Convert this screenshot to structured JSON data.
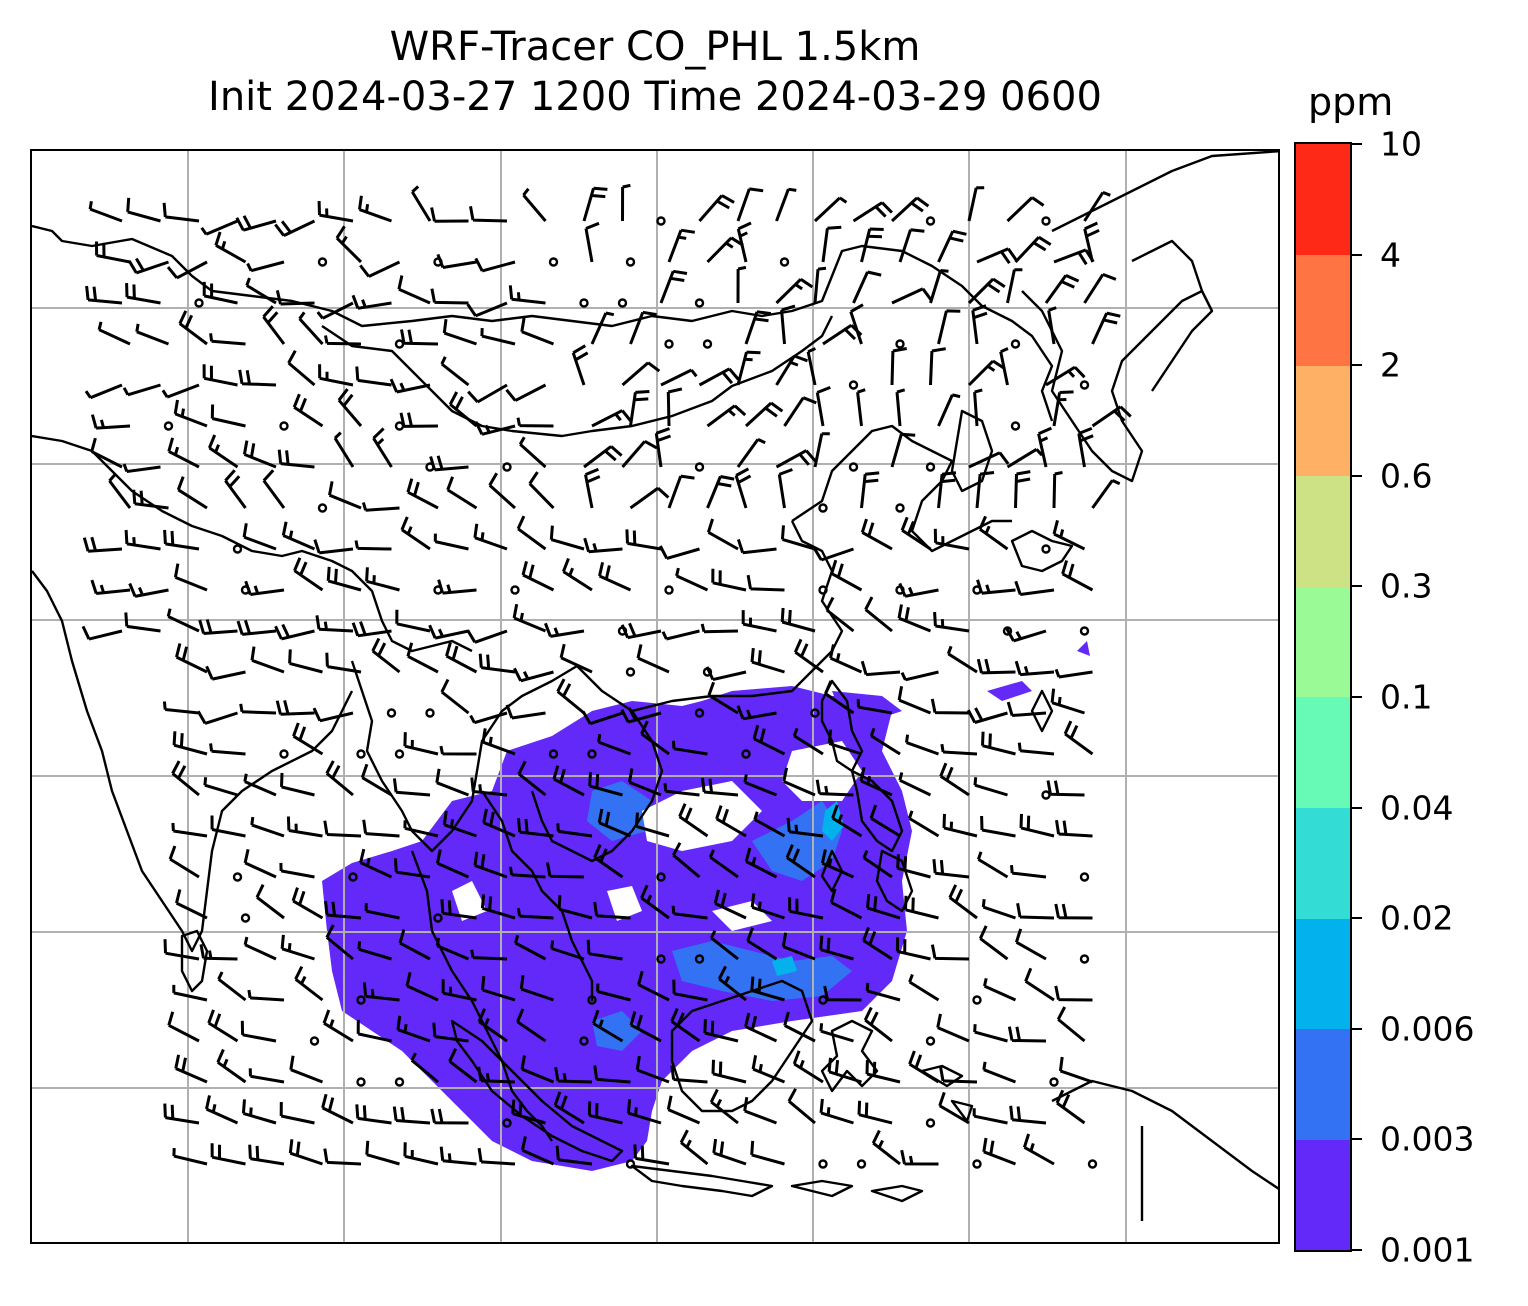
{
  "title": {
    "line1": "WRF-Tracer CO_PHL 1.5km",
    "line2": "Init 2024-03-27 1200 Time 2024-03-29 0600"
  },
  "colorbar": {
    "unit": "ppm",
    "levels": [
      "0.001",
      "0.003",
      "0.006",
      "0.02",
      "0.04",
      "0.1",
      "0.3",
      "0.6",
      "2",
      "4",
      "10"
    ],
    "colors": [
      "#6329f8",
      "#3373f3",
      "#03b1ec",
      "#33ddd5",
      "#66fab6",
      "#9afa95",
      "#cde185",
      "#feb064",
      "#ff7442",
      "#ff2918"
    ]
  },
  "map": {
    "region": "East and Southeast Asia",
    "gridlines": true,
    "plume_color": "#6329f8",
    "plume_core_color": "#3373f3",
    "plume_hotspot_color": "#03b1ec",
    "coast_color": "#000000",
    "grid_color": "#b0b0b0",
    "overlay": "wind barbs"
  }
}
